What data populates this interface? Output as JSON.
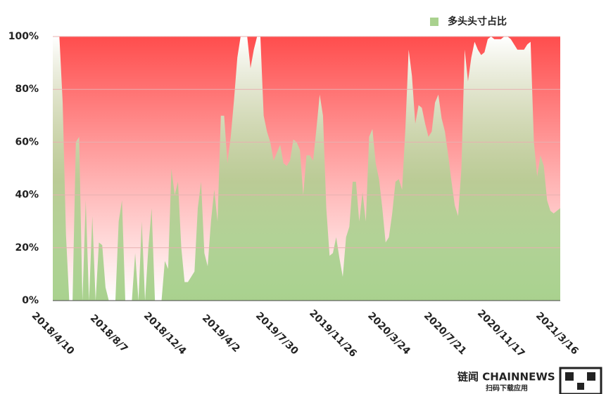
{
  "chart_data": {
    "type": "area",
    "categories": [
      "2018/4/10",
      null,
      null,
      null,
      null,
      null,
      null,
      null,
      null,
      null,
      null,
      null,
      null,
      null,
      null,
      null,
      null,
      "2018/8/7",
      null,
      null,
      null,
      null,
      null,
      null,
      null,
      null,
      null,
      null,
      null,
      null,
      null,
      null,
      null,
      null,
      "2018/12/4",
      null,
      null,
      null,
      null,
      null,
      null,
      null,
      null,
      null,
      null,
      null,
      null,
      null,
      null,
      null,
      null,
      "2019/4/2",
      null,
      null,
      null,
      null,
      null,
      null,
      null,
      null,
      null,
      null,
      null,
      null,
      null,
      null,
      null,
      null,
      "2019/7/30",
      null,
      null,
      null,
      null,
      null,
      null,
      null,
      null,
      null,
      null,
      null,
      null,
      null,
      null,
      null,
      null,
      "2019/11/26",
      null,
      null,
      null,
      null,
      null,
      null,
      null,
      null,
      null,
      null,
      null,
      null,
      null,
      null,
      null,
      null,
      "2020/3/24",
      null,
      null,
      null,
      null,
      null,
      null,
      null,
      null,
      null,
      null,
      null,
      null,
      null,
      null,
      null,
      null,
      "2020/7/21",
      null,
      null,
      null,
      null,
      null,
      null,
      null,
      null,
      null,
      null,
      null,
      null,
      null,
      null,
      null,
      null,
      "2020/11/17",
      null,
      null,
      null,
      null,
      null,
      null,
      null,
      null,
      null,
      null,
      null,
      null,
      null,
      null,
      null,
      null,
      "2021/3/16",
      null
    ],
    "series": [
      {
        "name": "多头头寸占比",
        "color": "#a9d18e",
        "values": [
          100,
          100,
          100,
          75,
          25,
          0,
          0,
          60,
          62,
          0,
          38,
          0,
          32,
          0,
          22,
          21,
          5,
          0,
          0,
          0,
          30,
          38,
          0,
          0,
          0,
          18,
          0,
          30,
          0,
          20,
          35,
          0,
          0,
          0,
          15,
          12,
          50,
          40,
          45,
          20,
          7,
          7,
          9,
          11,
          35,
          45,
          18,
          13,
          30,
          42,
          30,
          70,
          70,
          52,
          62,
          76,
          92,
          100,
          100,
          100,
          88,
          95,
          100,
          100,
          70,
          64,
          60,
          53,
          56,
          59,
          52,
          51,
          53,
          61,
          60,
          57,
          40,
          55,
          55,
          53,
          65,
          78,
          70,
          35,
          17,
          18,
          24,
          16,
          9,
          24,
          28,
          45,
          45,
          30,
          41,
          30,
          62,
          65,
          52,
          46,
          35,
          22,
          24,
          33,
          45,
          46,
          42,
          65,
          95,
          85,
          67,
          74,
          73,
          67,
          62,
          64,
          75,
          78,
          69,
          64,
          55,
          45,
          36,
          32,
          50,
          95,
          83,
          92,
          98,
          95,
          93,
          94,
          99,
          100,
          99,
          99,
          99,
          100,
          100,
          99,
          97,
          95,
          95,
          95,
          97,
          98,
          60,
          47,
          55,
          51,
          38,
          34,
          33,
          34,
          35
        ]
      }
    ],
    "ylim": [
      0,
      100
    ],
    "yticks": [
      {
        "value": 0,
        "label": "0%"
      },
      {
        "value": 20,
        "label": "20%"
      },
      {
        "value": 40,
        "label": "40%"
      },
      {
        "value": 60,
        "label": "60%"
      },
      {
        "value": 80,
        "label": "80%"
      },
      {
        "value": 100,
        "label": "100%"
      }
    ],
    "grid": true,
    "legend": "top-right",
    "background_color": "#ff4d4d"
  },
  "branding": {
    "name": "链闻 CHAINNEWS",
    "tagline": "扫码下载应用"
  }
}
